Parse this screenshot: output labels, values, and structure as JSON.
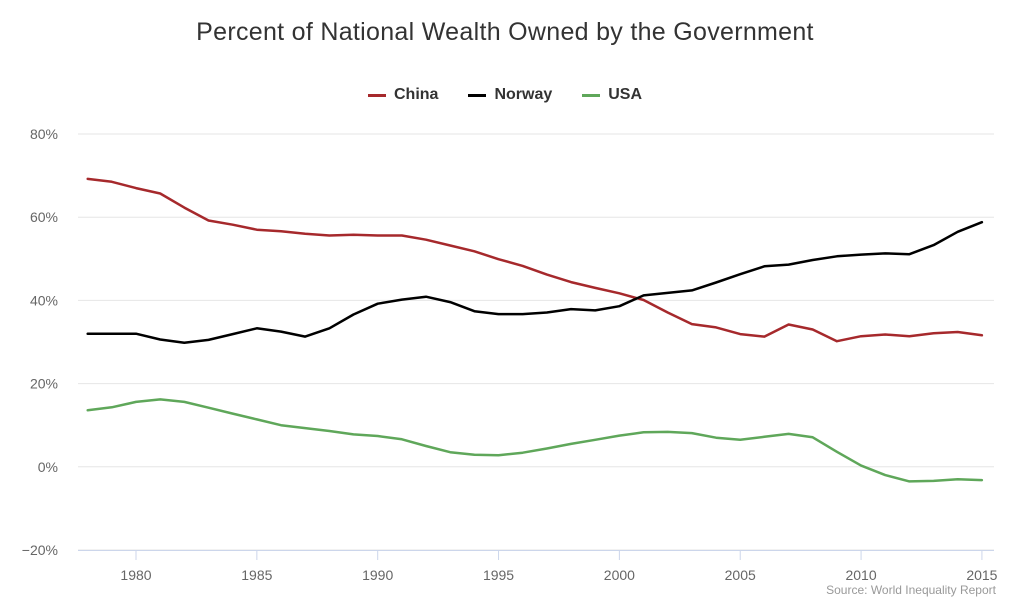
{
  "chart_data": {
    "type": "line",
    "title": "Percent of National Wealth Owned by the Government",
    "xlabel": "",
    "ylabel": "",
    "xlim": [
      1977.6,
      2015.5
    ],
    "ylim": [
      -20,
      80
    ],
    "yticks": [
      -20,
      0,
      20,
      40,
      60,
      80
    ],
    "ytick_labels": [
      "−20%",
      "0%",
      "20%",
      "40%",
      "60%",
      "80%"
    ],
    "xticks": [
      1980,
      1985,
      1990,
      1995,
      2000,
      2005,
      2010,
      2015
    ],
    "xtick_labels": [
      "1980",
      "1985",
      "1990",
      "1995",
      "2000",
      "2005",
      "2010",
      "2015"
    ],
    "grid": "horizontal",
    "legend_position": "top-center",
    "x": [
      1978,
      1979,
      1980,
      1981,
      1982,
      1983,
      1984,
      1985,
      1986,
      1987,
      1988,
      1989,
      1990,
      1991,
      1992,
      1993,
      1994,
      1995,
      1996,
      1997,
      1998,
      1999,
      2000,
      2001,
      2002,
      2003,
      2004,
      2005,
      2006,
      2007,
      2008,
      2009,
      2010,
      2011,
      2012,
      2013,
      2014,
      2015
    ],
    "series": [
      {
        "name": "China",
        "color": "#a6292c",
        "values": [
          69.2,
          68.5,
          67.0,
          65.7,
          62.3,
          59.2,
          58.2,
          57.0,
          56.6,
          56.0,
          55.6,
          55.8,
          55.6,
          55.6,
          54.6,
          53.2,
          51.8,
          49.9,
          48.3,
          46.2,
          44.4,
          43.0,
          41.7,
          40.1,
          37.1,
          34.3,
          33.5,
          31.9,
          31.3,
          34.2,
          33.0,
          30.2,
          31.4,
          31.8,
          31.4,
          32.1,
          32.4,
          31.6
        ]
      },
      {
        "name": "Norway",
        "color": "#000000",
        "values": [
          32.0,
          32.0,
          32.0,
          30.6,
          29.8,
          30.5,
          31.9,
          33.3,
          32.5,
          31.3,
          33.3,
          36.6,
          39.2,
          40.2,
          40.9,
          39.6,
          37.4,
          36.7,
          36.7,
          37.1,
          37.9,
          37.6,
          38.6,
          41.2,
          41.8,
          42.4,
          44.3,
          46.3,
          48.2,
          48.6,
          49.7,
          50.6,
          51.0,
          51.3,
          51.1,
          53.3,
          56.5,
          58.8
        ]
      },
      {
        "name": "USA",
        "color": "#5fa75a",
        "values": [
          13.6,
          14.3,
          15.6,
          16.2,
          15.6,
          14.2,
          12.8,
          11.4,
          10.0,
          9.3,
          8.6,
          7.8,
          7.4,
          6.6,
          5.0,
          3.5,
          2.9,
          2.8,
          3.4,
          4.4,
          5.5,
          6.5,
          7.5,
          8.3,
          8.4,
          8.1,
          7.0,
          6.5,
          7.2,
          7.9,
          7.1,
          3.6,
          0.3,
          -2.0,
          -3.5,
          -3.4,
          -3.0,
          -3.2
        ]
      }
    ],
    "source": "Source: World Inequality Report"
  }
}
